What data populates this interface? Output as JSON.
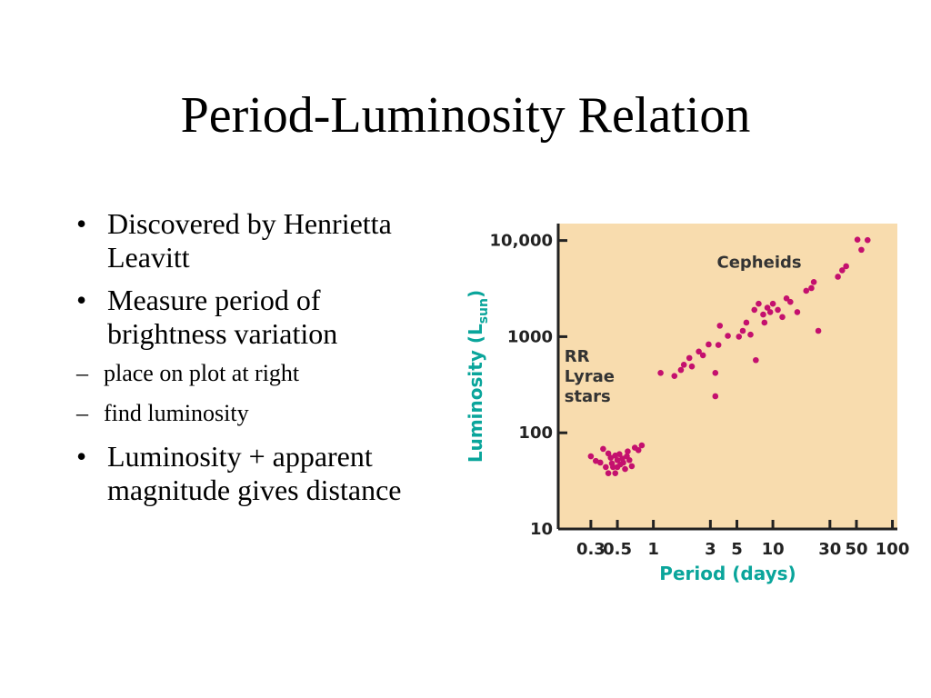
{
  "slide": {
    "title": "Period-Luminosity Relation",
    "bullets": [
      {
        "text": "Discovered by Henrietta Leavitt"
      },
      {
        "text": "Measure period of brightness variation",
        "subitems": [
          "place on plot at right",
          "find luminosity"
        ]
      },
      {
        "text": "Luminosity + apparent magnitude gives distance"
      }
    ],
    "bullet_glyph": "•",
    "sub_glyph": "–"
  },
  "chart_data": {
    "type": "scatter",
    "title": "",
    "xlabel": "Period (days)",
    "ylabel": "Luminosity (L",
    "ylabel_sub": "sun",
    "ylabel_close": ")",
    "x_scale": "log",
    "y_scale": "log",
    "xlim": [
      0.16,
      110
    ],
    "ylim": [
      10,
      15000
    ],
    "x_ticks": [
      0.3,
      0.5,
      1,
      3,
      5,
      10,
      30,
      50,
      100
    ],
    "x_tick_labels": [
      "0.3",
      "0.5",
      "1",
      "3",
      "5",
      "10",
      "30",
      "50",
      "100"
    ],
    "y_ticks": [
      10,
      100,
      1000,
      10000
    ],
    "y_tick_labels": [
      "10",
      "100",
      "1000",
      "10,000"
    ],
    "grid": false,
    "legend": "none",
    "colors": {
      "background": "#f8dcae",
      "point": "#c4106e",
      "axis": "#222222",
      "axis_label": "#0aa59b"
    },
    "annotations": [
      {
        "lines": [
          "Cepheids"
        ],
        "x": 3.4,
        "y": 5200
      },
      {
        "lines": [
          "RR",
          "Lyrae",
          "stars"
        ],
        "x": 0.18,
        "y": 550
      }
    ],
    "series": [
      {
        "points": [
          [
            0.3,
            57
          ],
          [
            0.33,
            51
          ],
          [
            0.36,
            49
          ],
          [
            0.38,
            68
          ],
          [
            0.4,
            44
          ],
          [
            0.42,
            61
          ],
          [
            0.42,
            38
          ],
          [
            0.44,
            55
          ],
          [
            0.45,
            48
          ],
          [
            0.46,
            44
          ],
          [
            0.48,
            58
          ],
          [
            0.48,
            38
          ],
          [
            0.5,
            52
          ],
          [
            0.5,
            44
          ],
          [
            0.52,
            60
          ],
          [
            0.53,
            47
          ],
          [
            0.55,
            54
          ],
          [
            0.56,
            49
          ],
          [
            0.58,
            42
          ],
          [
            0.6,
            57
          ],
          [
            0.61,
            64
          ],
          [
            0.63,
            52
          ],
          [
            0.66,
            45
          ],
          [
            0.7,
            70
          ],
          [
            0.75,
            66
          ],
          [
            0.8,
            74
          ]
        ]
      },
      {
        "points": [
          [
            1.15,
            420
          ],
          [
            1.5,
            390
          ],
          [
            1.7,
            450
          ],
          [
            1.8,
            510
          ],
          [
            2.0,
            600
          ],
          [
            2.1,
            490
          ],
          [
            2.4,
            700
          ],
          [
            2.6,
            640
          ],
          [
            2.9,
            830
          ],
          [
            3.3,
            420
          ],
          [
            3.3,
            240
          ],
          [
            3.5,
            820
          ],
          [
            3.6,
            1300
          ],
          [
            4.2,
            1020
          ],
          [
            5.2,
            1000
          ],
          [
            5.6,
            1150
          ],
          [
            6.0,
            1400
          ],
          [
            6.5,
            1050
          ],
          [
            7.0,
            1900
          ],
          [
            7.2,
            570
          ],
          [
            7.6,
            2200
          ],
          [
            8.3,
            1700
          ],
          [
            8.5,
            1400
          ],
          [
            9.0,
            2000
          ],
          [
            9.5,
            1800
          ],
          [
            10,
            2200
          ],
          [
            11,
            1900
          ],
          [
            12,
            1600
          ],
          [
            13,
            2500
          ],
          [
            14,
            2300
          ],
          [
            16,
            1800
          ],
          [
            19,
            3000
          ],
          [
            21,
            3200
          ],
          [
            22,
            3700
          ],
          [
            24,
            1150
          ],
          [
            35,
            4200
          ],
          [
            38,
            4900
          ],
          [
            41,
            5400
          ],
          [
            51,
            10200
          ],
          [
            55,
            8000
          ],
          [
            62,
            10100
          ]
        ]
      }
    ]
  }
}
